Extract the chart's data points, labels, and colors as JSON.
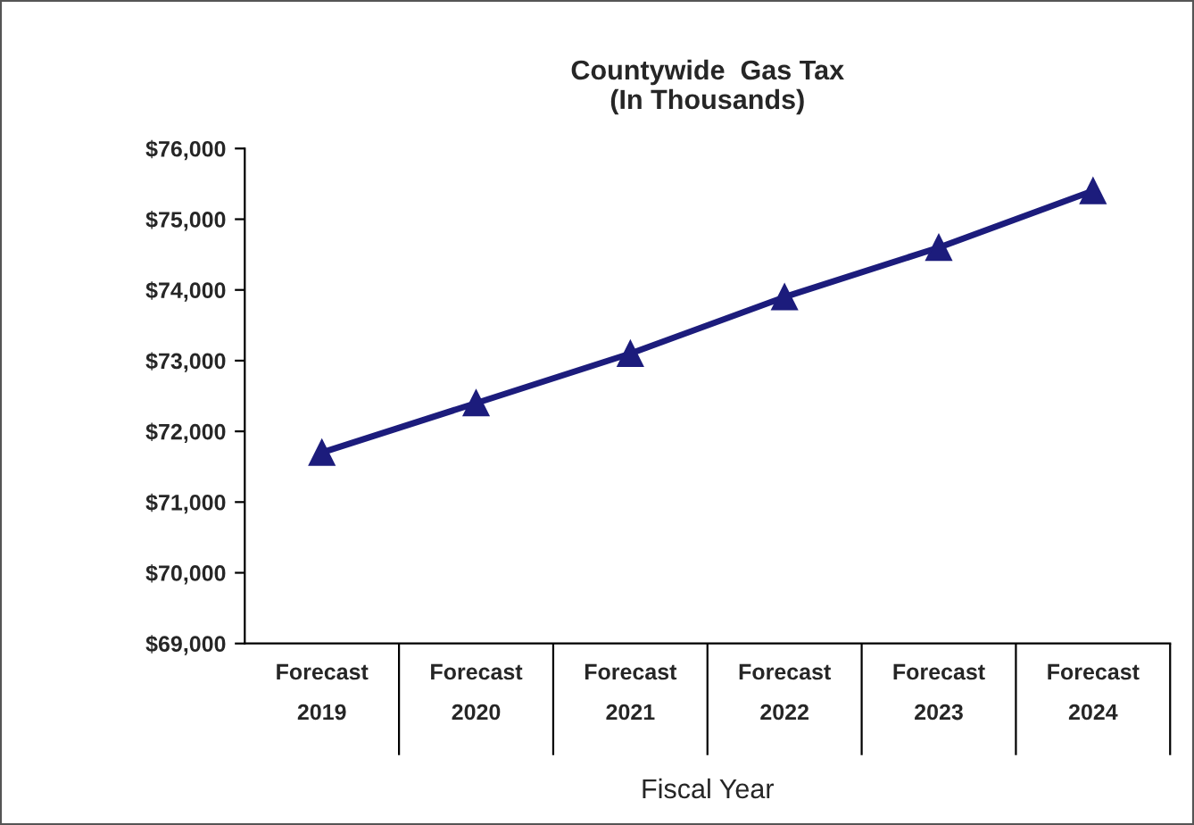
{
  "chart_data": {
    "type": "line",
    "title": "Countywide  Gas Tax\n(In Thousands)",
    "xlabel": "Fiscal Year",
    "categories": [
      "Forecast\n2019",
      "Forecast\n2020",
      "Forecast\n2021",
      "Forecast\n2022",
      "Forecast\n2023",
      "Forecast\n2024"
    ],
    "series": [
      {
        "color": "#1c1c7c",
        "values": [
          71700,
          72400,
          73100,
          73900,
          74600,
          75400
        ]
      }
    ],
    "ylim": [
      69000,
      76000
    ],
    "yticks": [
      {
        "value": 69000,
        "label": "$69,000"
      },
      {
        "value": 70000,
        "label": "$70,000"
      },
      {
        "value": 71000,
        "label": "$71,000"
      },
      {
        "value": 72000,
        "label": "$72,000"
      },
      {
        "value": 73000,
        "label": "$73,000"
      },
      {
        "value": 74000,
        "label": "$74,000"
      },
      {
        "value": 75000,
        "label": "$75,000"
      },
      {
        "value": 76000,
        "label": "$76,000"
      }
    ],
    "marker": "triangle",
    "line_style": "solid",
    "grid": false,
    "legend": false
  }
}
